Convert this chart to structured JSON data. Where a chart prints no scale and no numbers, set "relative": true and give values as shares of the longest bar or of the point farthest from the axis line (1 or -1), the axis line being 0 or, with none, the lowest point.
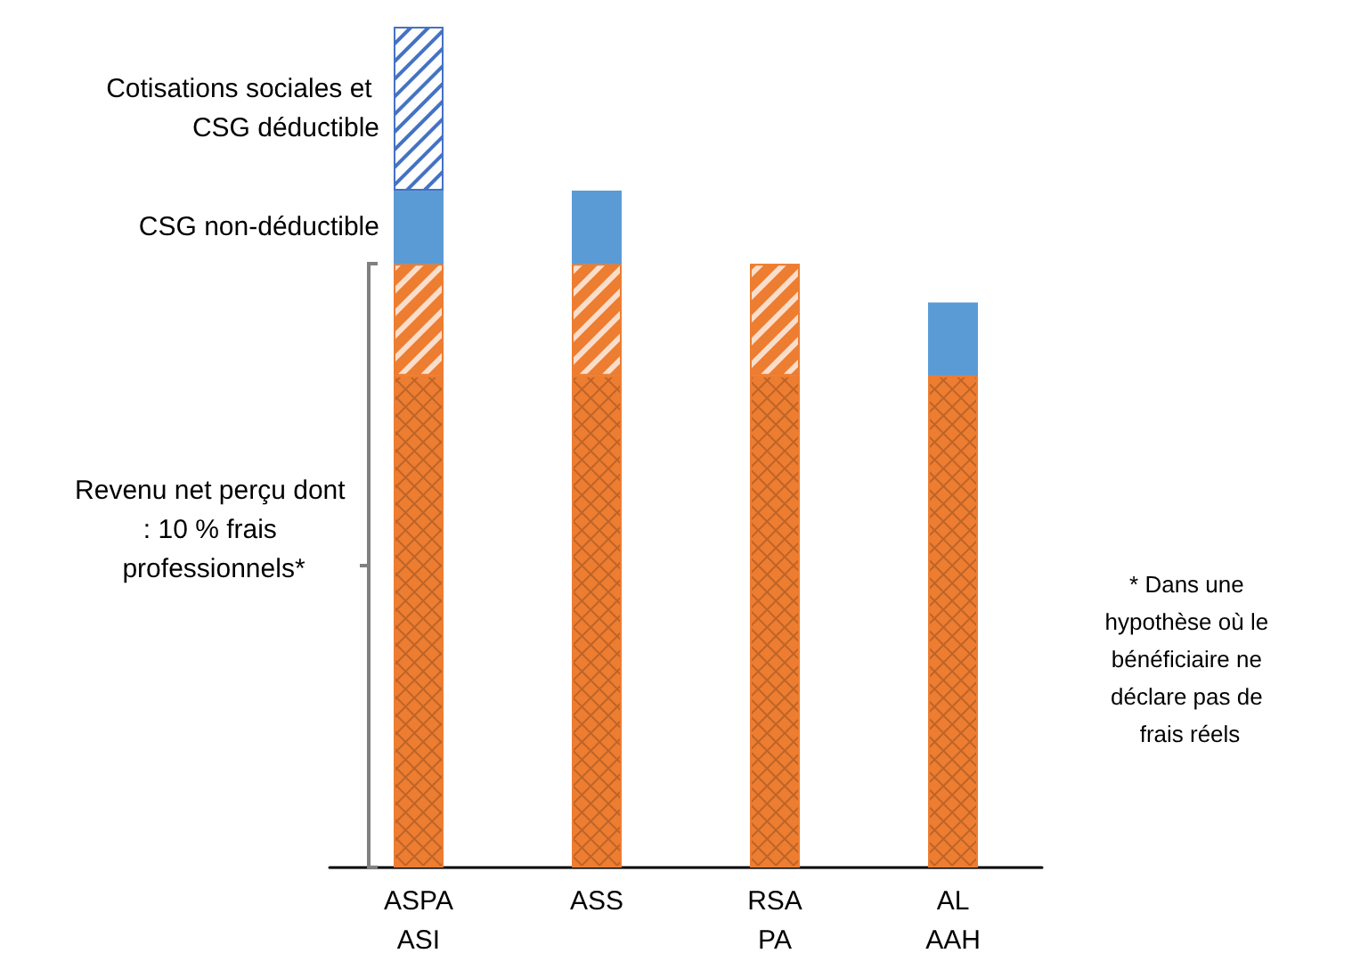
{
  "chart_data": {
    "type": "bar",
    "stacked": true,
    "relative": true,
    "legend": false,
    "categories": [
      "ASPA\nASI",
      "ASS",
      "RSA\nPA",
      "AL\nAAH"
    ],
    "series": [
      {
        "color": "#ed7d31",
        "values": [
          0.585,
          0.585,
          0.585,
          0.585
        ]
      },
      {
        "color": "#ed7d31",
        "values": [
          0.133,
          0.133,
          0.133,
          null
        ]
      },
      {
        "name": "CSG non-déductible",
        "color": "#5b9bd5",
        "values": [
          0.087,
          0.087,
          null,
          0.087
        ]
      },
      {
        "name": "Cotisations sociales et CSG déductible",
        "color": "#4472c4",
        "values": [
          0.195,
          null,
          null,
          null
        ]
      }
    ],
    "annotations": [
      "Revenu net perçu dont : 10 % frais professionnels*",
      "* Dans une hypothèse où le bénéficiaire ne déclare pas de frais réels"
    ]
  }
}
